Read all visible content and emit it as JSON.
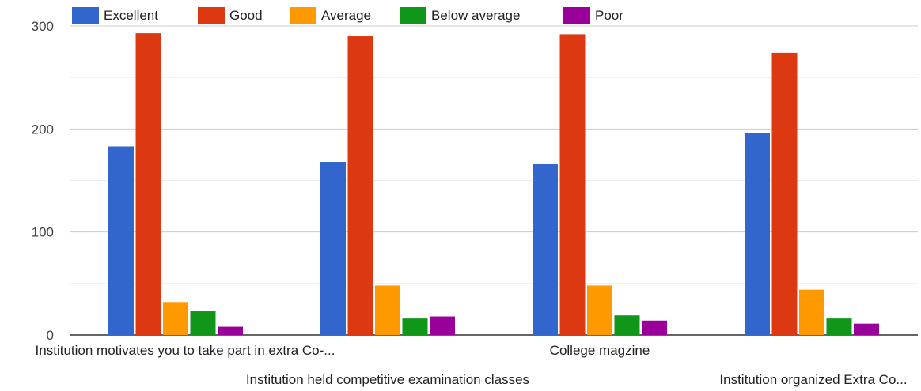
{
  "chart_data": {
    "type": "bar",
    "categories": [
      "Institution motivates you to take part in extra Co-...",
      "Institution held competitive examination classes",
      "College magzine",
      "Institution organized Extra Co..."
    ],
    "series": [
      {
        "name": "Excellent",
        "color": "#3366cc",
        "values": [
          183,
          168,
          166,
          196
        ]
      },
      {
        "name": "Good",
        "color": "#dc3912",
        "values": [
          293,
          290,
          292,
          274
        ]
      },
      {
        "name": "Average",
        "color": "#ff9900",
        "values": [
          32,
          48,
          48,
          44
        ]
      },
      {
        "name": "Below average",
        "color": "#109618",
        "values": [
          23,
          16,
          19,
          16
        ]
      },
      {
        "name": "Poor",
        "color": "#990099",
        "values": [
          8,
          18,
          14,
          11
        ]
      }
    ],
    "ylim": [
      0,
      300
    ],
    "yticks": [
      0,
      100,
      200,
      300
    ],
    "grid": true,
    "legend_position": "top"
  }
}
